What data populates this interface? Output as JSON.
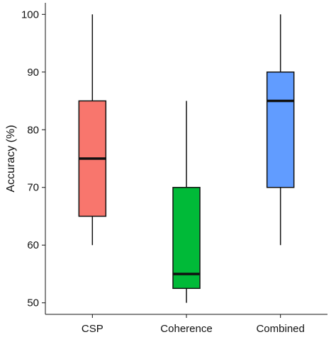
{
  "chart_data": {
    "type": "box",
    "title": "",
    "xlabel": "",
    "ylabel": "Accuracy (%)",
    "ylim": [
      48,
      102
    ],
    "yticks": [
      50,
      60,
      70,
      80,
      90,
      100
    ],
    "grid": false,
    "legend": "none",
    "categories": [
      "CSP",
      "Coherence",
      "Combined"
    ],
    "boxes": [
      {
        "category": "CSP",
        "whisker_low": 60,
        "q1": 65,
        "median": 75,
        "q3": 85,
        "whisker_high": 100,
        "color": "#F8766D"
      },
      {
        "category": "Coherence",
        "whisker_low": 50,
        "q1": 52.5,
        "median": 55,
        "q3": 70,
        "whisker_high": 85,
        "color": "#00BA38"
      },
      {
        "category": "Combined",
        "whisker_low": 60,
        "q1": 70,
        "median": 85,
        "q3": 90,
        "whisker_high": 100,
        "color": "#619CFF"
      }
    ]
  }
}
